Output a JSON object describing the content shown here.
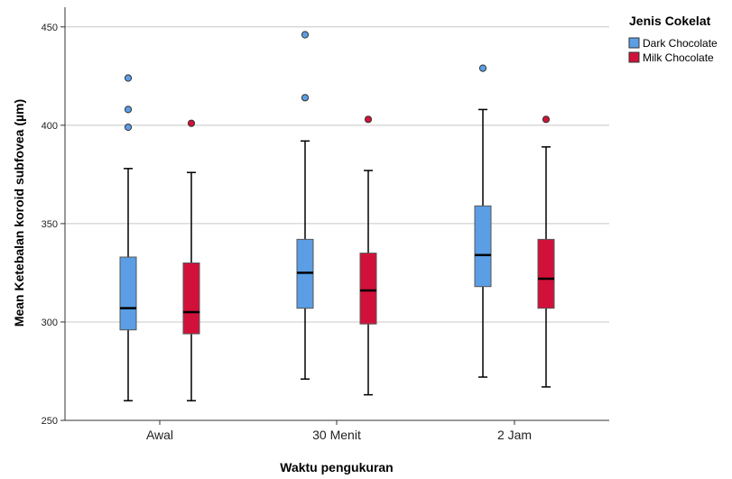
{
  "chart_data": {
    "type": "boxplot",
    "xlabel": "Waktu pengukuran",
    "ylabel": "Mean Ketebalan koroid subfovea (µm)",
    "ylim": [
      250,
      460
    ],
    "yticks": [
      250,
      300,
      350,
      400,
      450
    ],
    "grid": true,
    "legend": {
      "title": "Jenis Cokelat",
      "position": "top-right"
    },
    "categories": [
      "Awal",
      "30 Menit",
      "2 Jam"
    ],
    "series": [
      {
        "name": "Dark Chocolate",
        "color": "#5b9ee6",
        "boxes": [
          {
            "min": 260,
            "q1": 296,
            "median": 307,
            "q3": 333,
            "max": 378,
            "outliers": [
              399,
              408,
              424
            ]
          },
          {
            "min": 271,
            "q1": 307,
            "median": 325,
            "q3": 342,
            "max": 392,
            "outliers": [
              414,
              446
            ]
          },
          {
            "min": 272,
            "q1": 318,
            "median": 334,
            "q3": 359,
            "max": 408,
            "outliers": [
              429
            ]
          }
        ]
      },
      {
        "name": "Milk Chocolate",
        "color": "#d2113a",
        "boxes": [
          {
            "min": 260,
            "q1": 294,
            "median": 305,
            "q3": 330,
            "max": 376,
            "outliers": [
              401
            ]
          },
          {
            "min": 263,
            "q1": 299,
            "median": 316,
            "q3": 335,
            "max": 377,
            "outliers": [
              403
            ]
          },
          {
            "min": 267,
            "q1": 307,
            "median": 322,
            "q3": 342,
            "max": 389,
            "outliers": [
              403
            ]
          }
        ]
      }
    ]
  }
}
